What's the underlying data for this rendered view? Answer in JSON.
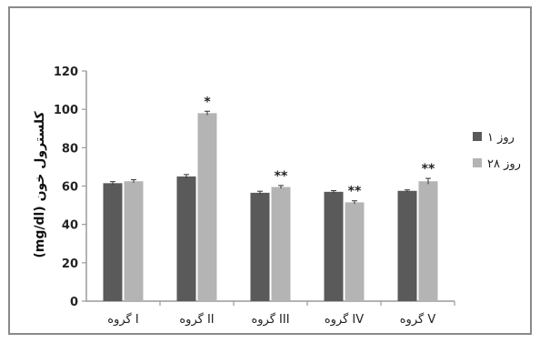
{
  "chart_data": {
    "type": "bar",
    "categories": [
      "گروه I",
      "گروه II",
      "گروه III",
      "گروه IV",
      "گروه V"
    ],
    "series": [
      {
        "name": "روز ۱",
        "values": [
          61.5,
          65,
          56.5,
          57,
          57.5
        ],
        "errors": [
          0.8,
          1.0,
          0.8,
          0.6,
          0.5
        ],
        "color": "#5a5a5a"
      },
      {
        "name": "روز ۲۸",
        "values": [
          62.5,
          98,
          59.5,
          51.5,
          62.5
        ],
        "errors": [
          0.8,
          1.0,
          0.8,
          0.8,
          1.5
        ],
        "color": "#b4b4b4"
      }
    ],
    "annotations": [
      "",
      "*",
      "**",
      "**",
      "**"
    ],
    "ylabel": "(mg/dl) کلسترول خون",
    "xlabel": "",
    "ylim": [
      0,
      120
    ],
    "yticks": [
      0,
      20,
      40,
      60,
      80,
      100,
      120
    ],
    "legend_position": "right",
    "grid": false
  }
}
